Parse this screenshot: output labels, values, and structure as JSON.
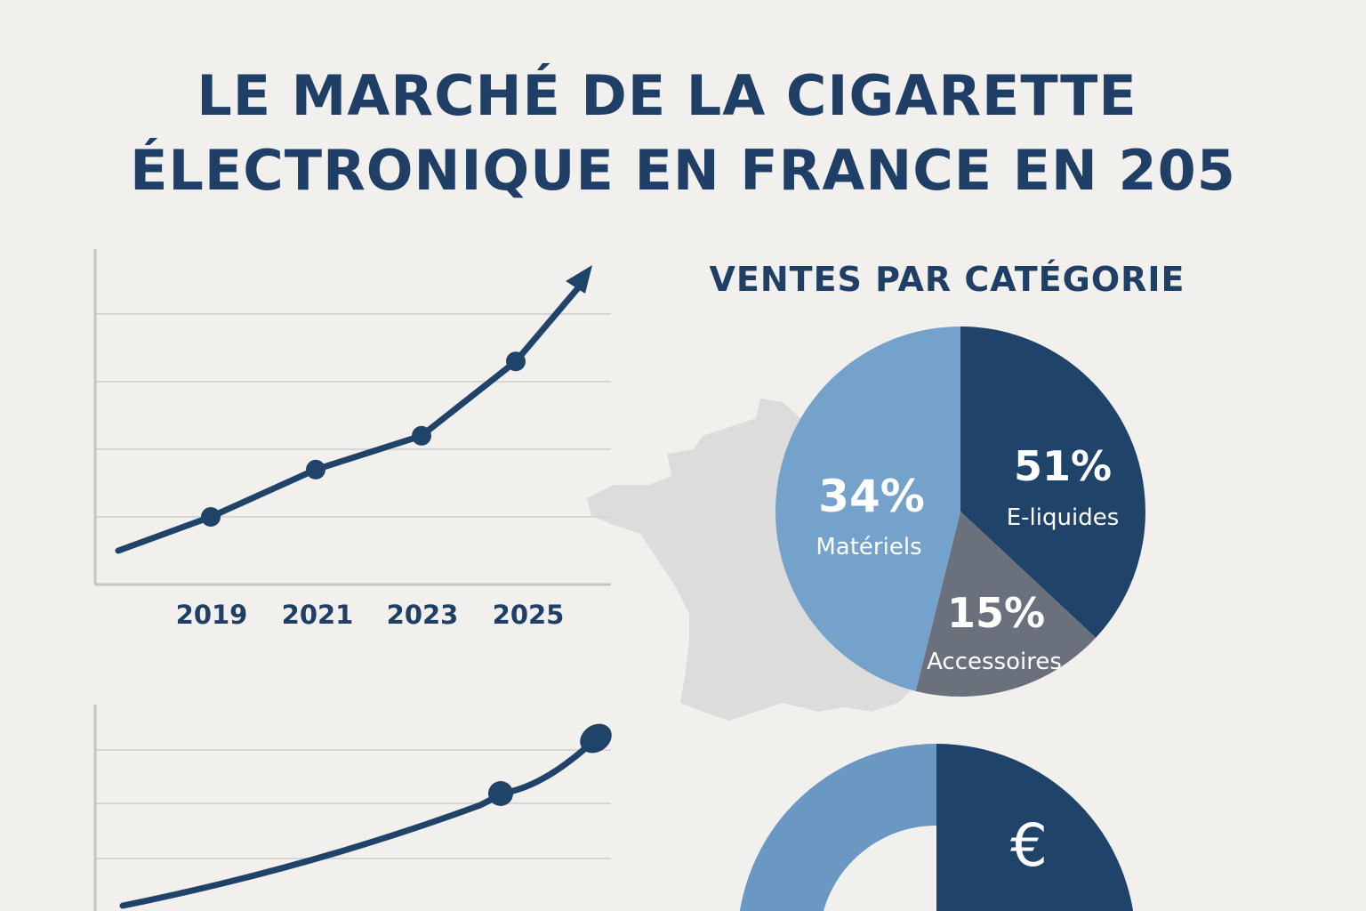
{
  "title": {
    "line1": "LE MARCHÉ DE LA CIGARETTE",
    "line2": "ÉLECTRONIQUE EN FRANCE EN 205"
  },
  "colors": {
    "navy": "#1f4369",
    "light_blue": "#75a2cb",
    "grey": "#6b717c",
    "grid": "#d6d6d6",
    "map": "#dcdcdc",
    "background": "#f2f0ed"
  },
  "chart_data": [
    {
      "type": "line",
      "title": "",
      "xlabel": "",
      "ylabel": "",
      "categories": [
        "2019",
        "2021",
        "2023",
        "2025"
      ],
      "values": [
        1.0,
        1.7,
        2.2,
        3.3
      ],
      "trend_start": 0.5,
      "trend_end_arrow": 4.7,
      "ylim": [
        0,
        5
      ],
      "grid": true
    },
    {
      "type": "pie",
      "title": "VENTES PAR CATÉGORIE",
      "slices": [
        {
          "label": "E-liquides",
          "value": 51,
          "display": "51%"
        },
        {
          "label": "Accessoires",
          "value": 15,
          "display": "15%"
        },
        {
          "label": "Matériels",
          "value": 34,
          "display": "34%"
        }
      ]
    },
    {
      "type": "line",
      "title": "",
      "values": [
        0.2,
        1.7,
        2.7
      ],
      "ylim": [
        0,
        4
      ],
      "grid": true
    },
    {
      "type": "pie",
      "title": "",
      "icon": "euro-icon",
      "icon_text": "€",
      "slices": [
        {
          "value": 50
        },
        {
          "value": 50
        }
      ]
    }
  ]
}
